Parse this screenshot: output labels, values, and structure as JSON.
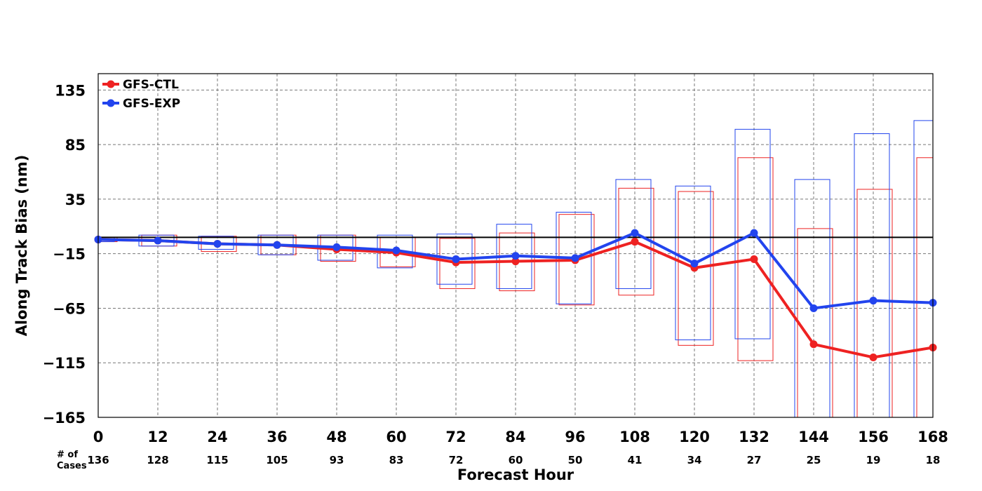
{
  "chart_data": {
    "type": "line",
    "xlabel": "Forecast Hour",
    "ylabel": "Along Track Bias (nm)",
    "x": [
      0,
      12,
      24,
      36,
      48,
      60,
      72,
      84,
      96,
      108,
      120,
      132,
      144,
      156,
      168
    ],
    "xlim": [
      0,
      168
    ],
    "ylim": [
      -165,
      150
    ],
    "yticks": [
      135,
      85,
      35,
      -15,
      -65,
      -115,
      -165
    ],
    "ytick_labels": [
      "135",
      "85",
      "35",
      "−15",
      "−65",
      "−115",
      "−165"
    ],
    "xtick_labels": [
      "0",
      "12",
      "24",
      "36",
      "48",
      "60",
      "72",
      "84",
      "96",
      "108",
      "120",
      "132",
      "144",
      "156",
      "168"
    ],
    "grid": true,
    "zero_line": 0,
    "legend": "top-left",
    "cases_label": "# of\nCases",
    "cases": [
      136,
      128,
      115,
      105,
      93,
      83,
      72,
      60,
      50,
      41,
      34,
      27,
      25,
      19,
      18
    ],
    "series": [
      {
        "name": "GFS-CTL",
        "color": "#ee2222",
        "values": [
          -2,
          -3,
          -6,
          -7,
          -11,
          -14,
          -23,
          -22,
          -21,
          -4,
          -28,
          -20,
          -98,
          -110,
          -101
        ],
        "box_low": [
          -4,
          -8,
          -13,
          -16,
          -22,
          -27,
          -47,
          -49,
          -62,
          -53,
          -99,
          -113,
          -165,
          -165,
          -165
        ],
        "box_high": [
          0,
          2,
          1,
          2,
          2,
          0,
          -1,
          4,
          21,
          45,
          42,
          73,
          8,
          44,
          73
        ],
        "box_offset": 2
      },
      {
        "name": "GFS-EXP",
        "color": "#2244ee",
        "values": [
          -2,
          -3,
          -6,
          -7,
          -9,
          -12,
          -20,
          -17,
          -19,
          4,
          -24,
          4,
          -65,
          -58,
          -60
        ],
        "box_low": [
          -4,
          -8,
          -11,
          -16,
          -21,
          -28,
          -43,
          -47,
          -61,
          -47,
          -94,
          -93,
          -165,
          -165,
          -165
        ],
        "box_high": [
          0,
          2,
          1,
          2,
          2,
          2,
          3,
          12,
          23,
          53,
          47,
          99,
          53,
          95,
          107
        ],
        "box_offset": -2
      }
    ]
  }
}
